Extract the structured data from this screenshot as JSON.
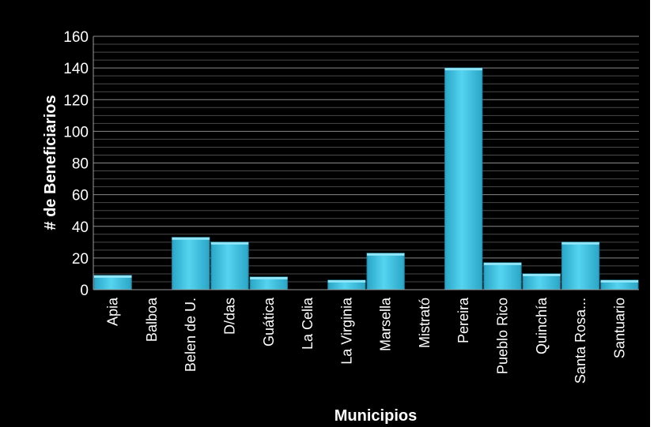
{
  "chart_data": {
    "type": "bar",
    "categories": [
      "Apia",
      "Balboa",
      "Belen de U.",
      "D/das",
      "Guática",
      "La Celia",
      "La Virginia",
      "Marsella",
      "Mistrató",
      "Pereira",
      "Pueblo Rico",
      "Quinchía",
      "Santa Rosa...",
      "Santuario"
    ],
    "values": [
      9,
      0,
      33,
      30,
      8,
      0,
      6,
      23,
      0,
      140,
      17,
      10,
      30,
      6
    ],
    "xlabel": "Municipios",
    "ylabel": "# de Beneficiarios",
    "ylim": [
      0,
      160
    ],
    "yticks": [
      0,
      20,
      40,
      60,
      80,
      100,
      120,
      140,
      160
    ],
    "grid": true,
    "colors": {
      "background": "#000000",
      "bar_fill": "#3cc0e0",
      "bar_edge": "#1f7f9a",
      "gridline": "#6e6e6e",
      "text": "#ffffff"
    }
  }
}
